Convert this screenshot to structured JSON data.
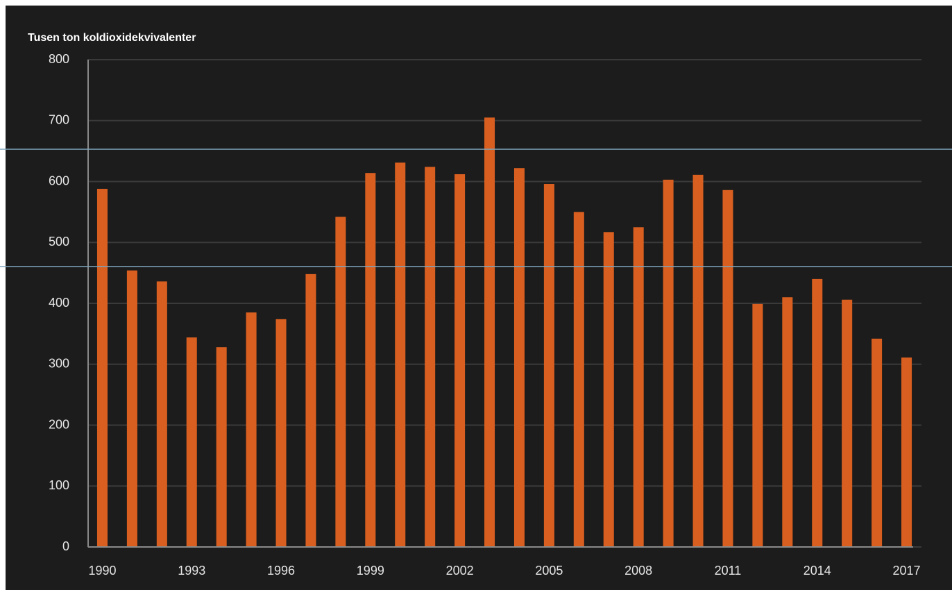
{
  "chart_data": {
    "type": "bar",
    "title": "Tusen ton koldioxidekvivalenter",
    "categories": [
      "1990",
      null,
      null,
      "1993",
      null,
      null,
      "1996",
      null,
      null,
      "1999",
      null,
      null,
      "2002",
      null,
      null,
      "2005",
      null,
      null,
      "2008",
      null,
      null,
      "2011",
      null,
      null,
      "2014",
      null,
      null,
      "2017"
    ],
    "values": [
      588,
      454,
      436,
      344,
      328,
      385,
      374,
      448,
      542,
      614,
      631,
      624,
      612,
      705,
      622,
      596,
      550,
      517,
      525,
      603,
      611,
      586,
      399,
      410,
      440,
      406,
      342,
      311
    ],
    "color": "#d95f20",
    "ylim": [
      0,
      800
    ],
    "yticks": [
      0,
      100,
      200,
      300,
      400,
      500,
      600,
      700,
      800
    ],
    "grid": true
  }
}
